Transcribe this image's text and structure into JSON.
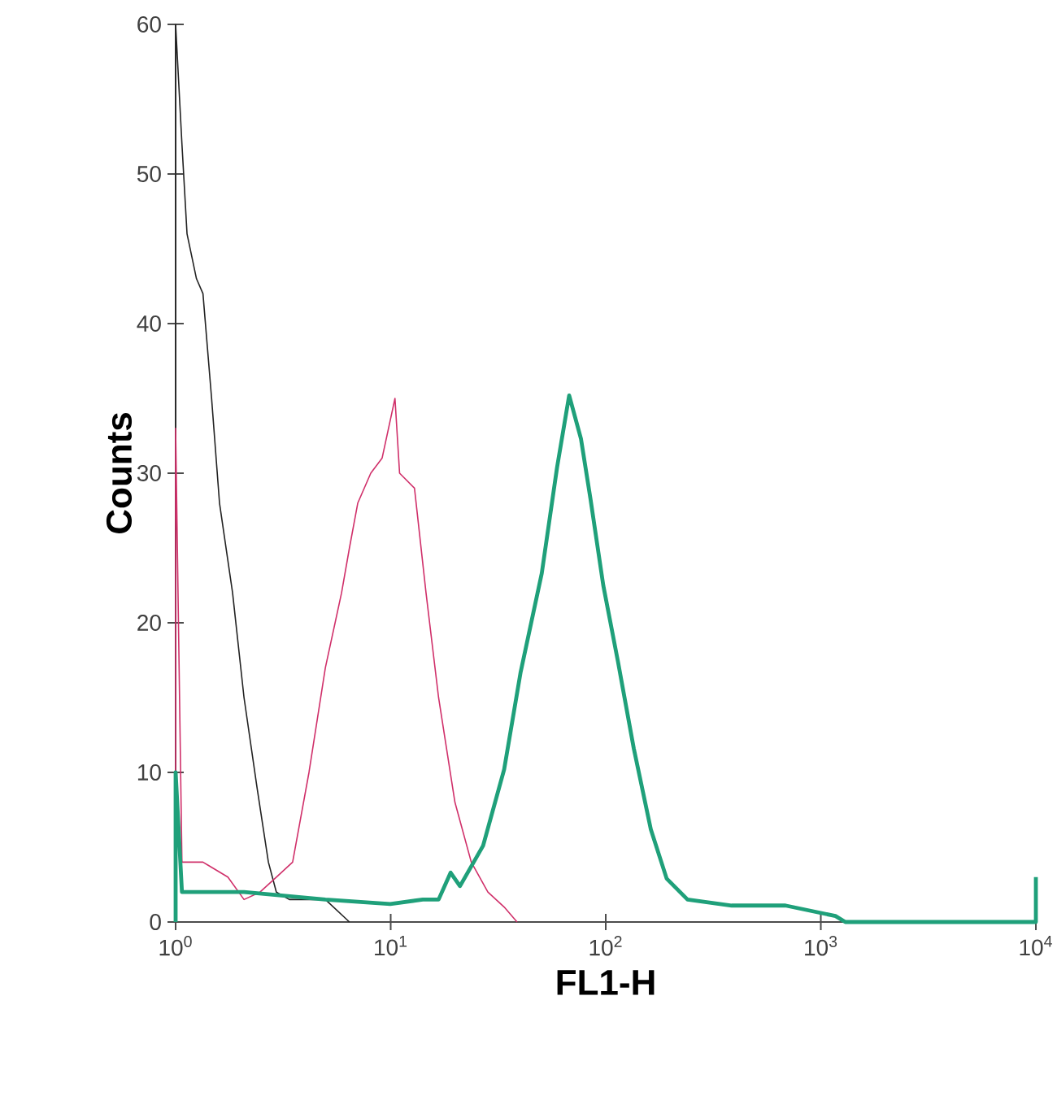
{
  "chart_data": {
    "type": "line",
    "xlabel": "FL1-H",
    "ylabel": "Counts",
    "log": "x",
    "marker": "none",
    "line_style": "solid",
    "xlim": [
      1,
      10000
    ],
    "ylim": [
      0,
      60
    ],
    "xticks": [
      {
        "value": 1,
        "label": "10$^{0}$"
      },
      {
        "value": 10,
        "label": "10$^{1}$"
      },
      {
        "value": 100,
        "label": "10$^{2}$"
      },
      {
        "value": 1000,
        "label": "10$^{3}$"
      },
      {
        "value": 10000,
        "label": "10$^{4}$"
      }
    ],
    "yticks": [
      0,
      10,
      20,
      30,
      40,
      50,
      60
    ],
    "series": [
      {
        "color": "#222222",
        "x": [
          1,
          1,
          1.07,
          1.13,
          1.25,
          1.34,
          1.47,
          1.6,
          1.84,
          2.08,
          2.39,
          2.7,
          2.94,
          3.38,
          4.97,
          6.43
        ],
        "values": [
          0,
          60,
          52,
          46,
          43,
          42,
          35,
          28,
          22,
          15,
          9,
          4,
          2,
          1.5,
          1.5,
          0
        ]
      },
      {
        "color": "#d0306a",
        "x": [
          1,
          1,
          1.07,
          1.34,
          1.75,
          2.08,
          2.47,
          2.94,
          3.5,
          4.17,
          4.97,
          5.91,
          6.43,
          7.03,
          8.08,
          9.12,
          10.47,
          11.0,
          12.9,
          14.6,
          16.7,
          19.9,
          23.7,
          28.3,
          33.7,
          38.7
        ],
        "values": [
          0,
          33,
          4,
          4,
          3,
          1.5,
          2,
          3,
          4,
          10,
          17,
          22,
          25,
          28,
          30,
          31,
          35,
          30,
          29,
          22,
          15,
          8,
          4,
          2,
          1,
          0
        ]
      },
      {
        "color": "#1fa07a",
        "x": [
          1,
          1,
          1.07,
          2.08,
          4.97,
          9.95,
          14.1,
          16.7,
          19.0,
          21.0,
          26.9,
          33.7,
          40.2,
          50.4,
          59.4,
          67.6,
          76.7,
          84.9,
          97.4,
          114,
          135,
          162,
          192,
          240,
          385,
          685,
          1170,
          1300,
          10000,
          10000
        ],
        "values": [
          0,
          10,
          2,
          2,
          1.5,
          1.2,
          1.5,
          1.5,
          3.3,
          2.4,
          5.1,
          10.2,
          16.7,
          23.3,
          30.4,
          35.2,
          32.3,
          28.3,
          22.5,
          17.4,
          11.6,
          6.2,
          2.9,
          1.5,
          1.1,
          1.1,
          0.4,
          0,
          0,
          3
        ]
      }
    ]
  }
}
